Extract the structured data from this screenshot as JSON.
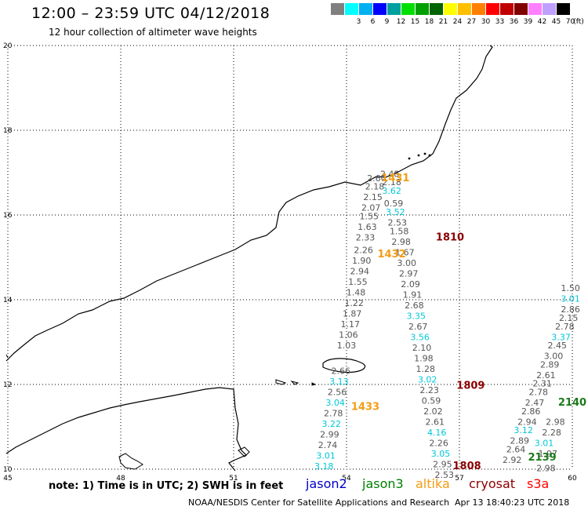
{
  "header": {
    "title": "12:00 – 23:59 UTC 04/12/2018",
    "subtitle": "12 hour collection of altimeter wave heights"
  },
  "scale": {
    "unit": "(ft)",
    "bins": [
      {
        "label": "",
        "color": "#808080"
      },
      {
        "label": "3",
        "color": "#00ffff"
      },
      {
        "label": "6",
        "color": "#00b0f0"
      },
      {
        "label": "9",
        "color": "#0000ff"
      },
      {
        "label": "12",
        "color": "#00a0a0"
      },
      {
        "label": "15",
        "color": "#00e000"
      },
      {
        "label": "18",
        "color": "#00a000"
      },
      {
        "label": "21",
        "color": "#006400"
      },
      {
        "label": "24",
        "color": "#ffff00"
      },
      {
        "label": "27",
        "color": "#ffc000"
      },
      {
        "label": "30",
        "color": "#ff8000"
      },
      {
        "label": "33",
        "color": "#ff0000"
      },
      {
        "label": "36",
        "color": "#c00000"
      },
      {
        "label": "39",
        "color": "#800000"
      },
      {
        "label": "42",
        "color": "#ff80ff"
      },
      {
        "label": "45",
        "color": "#c0a0ff"
      },
      {
        "label": "70",
        "color": "#000000"
      }
    ]
  },
  "map": {
    "lat_labels": [
      "20",
      "18",
      "16",
      "14",
      "12",
      "10"
    ],
    "lon_labels": [
      "45",
      "48",
      "51",
      "54",
      "57",
      "60"
    ],
    "tracks": [
      {
        "time": "1431",
        "color": "#f39c12",
        "lon": 55.3,
        "lat": 16.8
      },
      {
        "time": "1810",
        "color": "#8b0000",
        "lon": 56.75,
        "lat": 15.4
      },
      {
        "time": "1432",
        "color": "#f39c12",
        "lon": 55.2,
        "lat": 15.0
      },
      {
        "time": "1433",
        "color": "#f39c12",
        "lon": 54.5,
        "lat": 11.4
      },
      {
        "time": "1809",
        "color": "#8b0000",
        "lon": 57.3,
        "lat": 11.9
      },
      {
        "time": "1808",
        "color": "#8b0000",
        "lon": 57.2,
        "lat": 10.0
      },
      {
        "time": "2139",
        "color": "#1a7a1a",
        "lon": 59.2,
        "lat": 10.2
      },
      {
        "time": "2140",
        "color": "#1a7a1a",
        "lon": 60.0,
        "lat": 11.5
      }
    ],
    "readings": [
      {
        "v": "2.48",
        "lon": 55.15,
        "lat": 16.9,
        "c": "#555555"
      },
      {
        "v": "2.60",
        "lon": 54.8,
        "lat": 16.8,
        "c": "#555555"
      },
      {
        "v": "2.18",
        "lon": 55.2,
        "lat": 16.7,
        "c": "#555555"
      },
      {
        "v": "2.18",
        "lon": 54.75,
        "lat": 16.6,
        "c": "#555555"
      },
      {
        "v": "3.62",
        "lon": 55.2,
        "lat": 16.5,
        "c": "#00c8d8"
      },
      {
        "v": "2.15",
        "lon": 54.7,
        "lat": 16.35,
        "c": "#555555"
      },
      {
        "v": "0.59",
        "lon": 55.25,
        "lat": 16.2,
        "c": "#555555"
      },
      {
        "v": "2.07",
        "lon": 54.65,
        "lat": 16.1,
        "c": "#555555"
      },
      {
        "v": "3.52",
        "lon": 55.3,
        "lat": 16.0,
        "c": "#00c8d8"
      },
      {
        "v": "1.55",
        "lon": 54.6,
        "lat": 15.9,
        "c": "#555555"
      },
      {
        "v": "2.53",
        "lon": 55.35,
        "lat": 15.75,
        "c": "#555555"
      },
      {
        "v": "1.63",
        "lon": 54.55,
        "lat": 15.65,
        "c": "#555555"
      },
      {
        "v": "1.58",
        "lon": 55.4,
        "lat": 15.55,
        "c": "#555555"
      },
      {
        "v": "2.33",
        "lon": 54.5,
        "lat": 15.4,
        "c": "#555555"
      },
      {
        "v": "2.98",
        "lon": 55.45,
        "lat": 15.3,
        "c": "#555555"
      },
      {
        "v": "2.26",
        "lon": 54.45,
        "lat": 15.1,
        "c": "#555555"
      },
      {
        "v": "1.67",
        "lon": 55.55,
        "lat": 15.05,
        "c": "#555555"
      },
      {
        "v": "1.90",
        "lon": 54.4,
        "lat": 14.85,
        "c": "#555555"
      },
      {
        "v": "3.00",
        "lon": 55.6,
        "lat": 14.8,
        "c": "#555555"
      },
      {
        "v": "2.94",
        "lon": 54.35,
        "lat": 14.6,
        "c": "#555555"
      },
      {
        "v": "2.97",
        "lon": 55.65,
        "lat": 14.55,
        "c": "#555555"
      },
      {
        "v": "1.55",
        "lon": 54.3,
        "lat": 14.35,
        "c": "#555555"
      },
      {
        "v": "2.09",
        "lon": 55.7,
        "lat": 14.3,
        "c": "#555555"
      },
      {
        "v": "1.48",
        "lon": 54.25,
        "lat": 14.1,
        "c": "#555555"
      },
      {
        "v": "1.91",
        "lon": 55.75,
        "lat": 14.05,
        "c": "#555555"
      },
      {
        "v": "1.22",
        "lon": 54.2,
        "lat": 13.85,
        "c": "#555555"
      },
      {
        "v": "2.68",
        "lon": 55.8,
        "lat": 13.8,
        "c": "#555555"
      },
      {
        "v": "1.87",
        "lon": 54.15,
        "lat": 13.6,
        "c": "#555555"
      },
      {
        "v": "3.35",
        "lon": 55.85,
        "lat": 13.55,
        "c": "#00c8d8"
      },
      {
        "v": "1.17",
        "lon": 54.1,
        "lat": 13.35,
        "c": "#555555"
      },
      {
        "v": "2.67",
        "lon": 55.9,
        "lat": 13.3,
        "c": "#555555"
      },
      {
        "v": "1.06",
        "lon": 54.05,
        "lat": 13.1,
        "c": "#555555"
      },
      {
        "v": "3.56",
        "lon": 55.95,
        "lat": 13.05,
        "c": "#00c8d8"
      },
      {
        "v": "1.03",
        "lon": 54.0,
        "lat": 12.85,
        "c": "#555555"
      },
      {
        "v": "2.10",
        "lon": 56.0,
        "lat": 12.8,
        "c": "#555555"
      },
      {
        "v": "1.98",
        "lon": 56.05,
        "lat": 12.55,
        "c": "#555555"
      },
      {
        "v": "1.28",
        "lon": 56.1,
        "lat": 12.3,
        "c": "#555555"
      },
      {
        "v": "2.66",
        "lon": 53.85,
        "lat": 12.25,
        "c": "#555555"
      },
      {
        "v": "3.02",
        "lon": 56.15,
        "lat": 12.05,
        "c": "#00c8d8"
      },
      {
        "v": "3.13",
        "lon": 53.8,
        "lat": 12.0,
        "c": "#00c8d8"
      },
      {
        "v": "2.23",
        "lon": 56.2,
        "lat": 11.8,
        "c": "#555555"
      },
      {
        "v": "2.56",
        "lon": 53.75,
        "lat": 11.75,
        "c": "#555555"
      },
      {
        "v": "0.59",
        "lon": 56.25,
        "lat": 11.55,
        "c": "#555555"
      },
      {
        "v": "3.04",
        "lon": 53.7,
        "lat": 11.5,
        "c": "#00c8d8"
      },
      {
        "v": "2.02",
        "lon": 56.3,
        "lat": 11.3,
        "c": "#555555"
      },
      {
        "v": "2.78",
        "lon": 53.65,
        "lat": 11.25,
        "c": "#555555"
      },
      {
        "v": "2.61",
        "lon": 56.35,
        "lat": 11.05,
        "c": "#555555"
      },
      {
        "v": "3.22",
        "lon": 53.6,
        "lat": 11.0,
        "c": "#00c8d8"
      },
      {
        "v": "4.16",
        "lon": 56.4,
        "lat": 10.8,
        "c": "#00c8d8"
      },
      {
        "v": "2.99",
        "lon": 53.55,
        "lat": 10.75,
        "c": "#555555"
      },
      {
        "v": "2.26",
        "lon": 56.45,
        "lat": 10.55,
        "c": "#555555"
      },
      {
        "v": "2.74",
        "lon": 53.5,
        "lat": 10.5,
        "c": "#555555"
      },
      {
        "v": "3.05",
        "lon": 56.5,
        "lat": 10.3,
        "c": "#00c8d8"
      },
      {
        "v": "3.01",
        "lon": 53.45,
        "lat": 10.25,
        "c": "#00c8d8"
      },
      {
        "v": "2.95",
        "lon": 56.55,
        "lat": 10.05,
        "c": "#555555"
      },
      {
        "v": "3.18",
        "lon": 53.4,
        "lat": 10.0,
        "c": "#00c8d8"
      },
      {
        "v": "2.53",
        "lon": 56.6,
        "lat": 9.8,
        "c": "#555555"
      },
      {
        "v": "2.92",
        "lon": 58.4,
        "lat": 10.15,
        "c": "#555555"
      },
      {
        "v": "2.64",
        "lon": 58.5,
        "lat": 10.4,
        "c": "#555555"
      },
      {
        "v": "2.89",
        "lon": 58.6,
        "lat": 10.6,
        "c": "#555555"
      },
      {
        "v": "3.12",
        "lon": 58.7,
        "lat": 10.85,
        "c": "#00c8d8"
      },
      {
        "v": "2.94",
        "lon": 58.8,
        "lat": 11.05,
        "c": "#555555"
      },
      {
        "v": "2.86",
        "lon": 58.9,
        "lat": 11.3,
        "c": "#555555"
      },
      {
        "v": "2.47",
        "lon": 59.0,
        "lat": 11.5,
        "c": "#555555"
      },
      {
        "v": "2.78",
        "lon": 59.1,
        "lat": 11.75,
        "c": "#555555"
      },
      {
        "v": "2.31",
        "lon": 59.2,
        "lat": 11.95,
        "c": "#555555"
      },
      {
        "v": "2.61",
        "lon": 59.3,
        "lat": 12.15,
        "c": "#555555"
      },
      {
        "v": "2.89",
        "lon": 59.4,
        "lat": 12.4,
        "c": "#555555"
      },
      {
        "v": "3.00",
        "lon": 59.5,
        "lat": 12.6,
        "c": "#555555"
      },
      {
        "v": "2.45",
        "lon": 59.6,
        "lat": 12.85,
        "c": "#555555"
      },
      {
        "v": "3.37",
        "lon": 59.7,
        "lat": 13.05,
        "c": "#00c8d8"
      },
      {
        "v": "2.78",
        "lon": 59.8,
        "lat": 13.3,
        "c": "#555555"
      },
      {
        "v": "2.15",
        "lon": 59.9,
        "lat": 13.5,
        "c": "#555555"
      },
      {
        "v": "2.86",
        "lon": 59.95,
        "lat": 13.7,
        "c": "#555555"
      },
      {
        "v": "3.01",
        "lon": 59.95,
        "lat": 13.95,
        "c": "#00c8d8"
      },
      {
        "v": "1.50",
        "lon": 59.95,
        "lat": 14.2,
        "c": "#555555"
      },
      {
        "v": "2.98",
        "lon": 59.3,
        "lat": 9.95,
        "c": "#555555"
      },
      {
        "v": "3.01",
        "lon": 59.25,
        "lat": 10.55,
        "c": "#00c8d8"
      },
      {
        "v": "1.97",
        "lon": 59.35,
        "lat": 10.3,
        "c": "#555555"
      },
      {
        "v": "2.28",
        "lon": 59.45,
        "lat": 10.8,
        "c": "#555555"
      },
      {
        "v": "2.98",
        "lon": 59.55,
        "lat": 11.05,
        "c": "#555555"
      }
    ]
  },
  "legend": {
    "note": "note: 1) Time is in UTC; 2) SWH is in feet",
    "items": [
      {
        "label": "jason2",
        "color": "#0000cc"
      },
      {
        "label": "jason3",
        "color": "#008000"
      },
      {
        "label": "altika",
        "color": "#f39c12"
      },
      {
        "label": "cryosat",
        "color": "#8b0000"
      },
      {
        "label": "s3a",
        "color": "#ff0000"
      }
    ]
  },
  "footer": {
    "credit": "NOAA/NESDIS Center for Satellite Applications and Research",
    "timestamp": "Apr 13 18:40:23 UTC 2018"
  }
}
